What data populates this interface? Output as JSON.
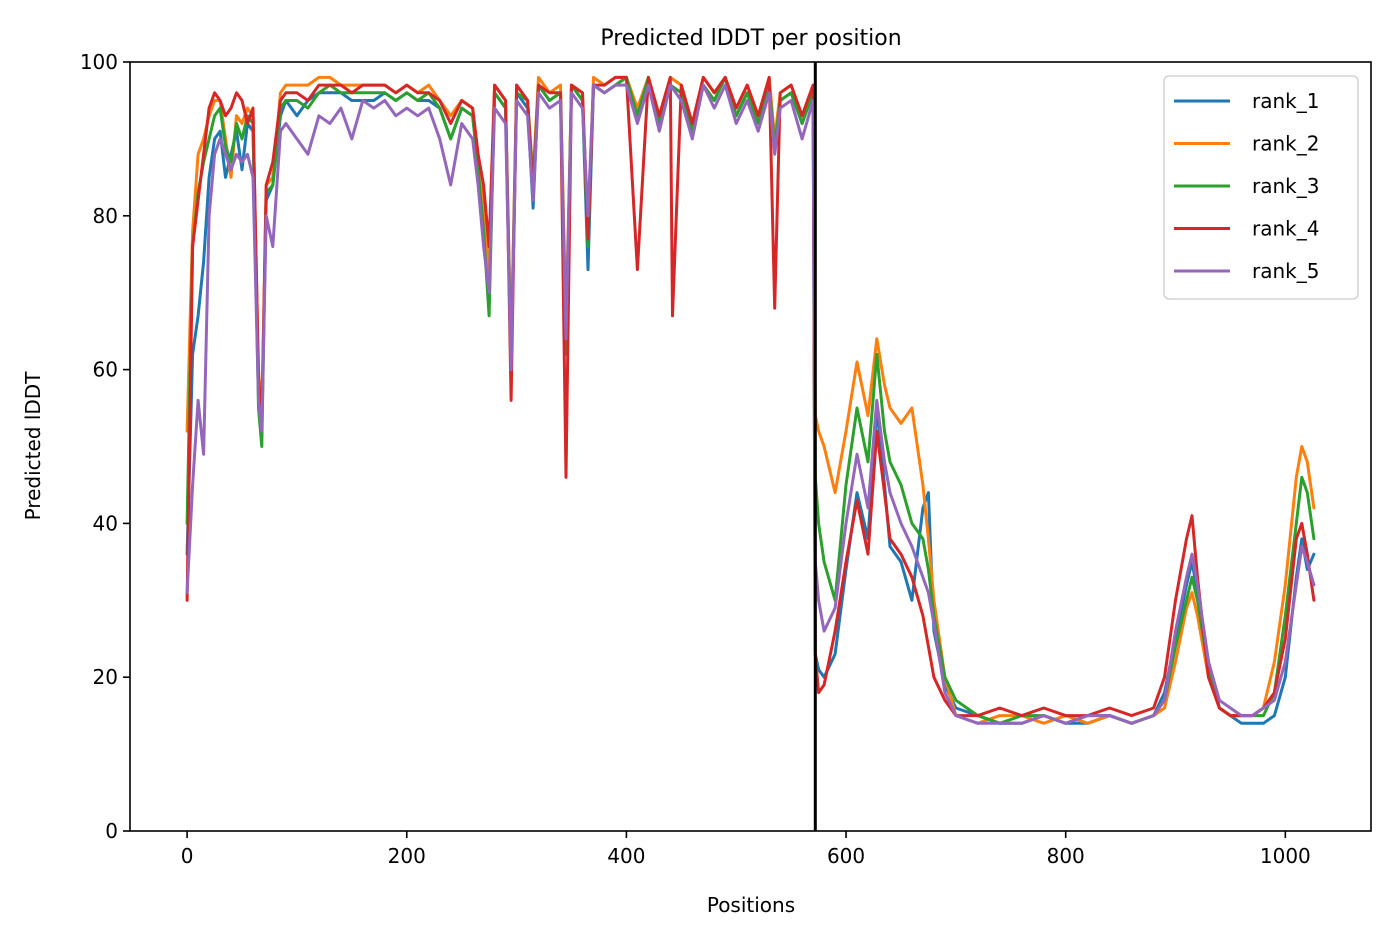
{
  "chart_data": {
    "type": "line",
    "title": "Predicted lDDT per position",
    "xlabel": "Positions",
    "ylabel": "Predicted lDDT",
    "xlim": [
      -52,
      1078
    ],
    "ylim": [
      0,
      100
    ],
    "xticks": [
      0,
      200,
      400,
      600,
      800,
      1000
    ],
    "yticks": [
      0,
      20,
      40,
      60,
      80,
      100
    ],
    "grid": false,
    "legend_position": "top-right",
    "vline_x": 572,
    "series": [
      {
        "name": "rank_1",
        "color": "#1f77b4",
        "x": [
          0,
          5,
          10,
          15,
          20,
          25,
          30,
          35,
          40,
          45,
          50,
          55,
          60,
          65,
          68,
          72,
          78,
          85,
          90,
          100,
          110,
          120,
          130,
          140,
          150,
          160,
          170,
          180,
          190,
          200,
          210,
          220,
          230,
          240,
          250,
          260,
          265,
          270,
          275,
          280,
          290,
          295,
          300,
          310,
          315,
          320,
          330,
          340,
          345,
          350,
          360,
          365,
          370,
          380,
          390,
          400,
          410,
          420,
          430,
          440,
          450,
          460,
          470,
          480,
          490,
          500,
          510,
          520,
          530,
          535,
          540,
          550,
          560,
          570,
          572,
          575,
          580,
          590,
          600,
          610,
          620,
          628,
          635,
          640,
          650,
          660,
          670,
          675,
          680,
          690,
          700,
          720,
          740,
          760,
          780,
          800,
          820,
          840,
          860,
          880,
          890,
          900,
          910,
          915,
          920,
          930,
          940,
          950,
          960,
          970,
          980,
          990,
          1000,
          1010,
          1015,
          1020,
          1026
        ],
        "values": [
          36,
          62,
          67,
          74,
          85,
          90,
          91,
          85,
          88,
          91,
          86,
          92,
          91,
          58,
          53,
          82,
          84,
          93,
          95,
          93,
          95,
          96,
          96,
          96,
          95,
          95,
          95,
          96,
          95,
          96,
          95,
          95,
          94,
          90,
          94,
          93,
          87,
          80,
          70,
          96,
          94,
          62,
          96,
          94,
          81,
          97,
          95,
          96,
          63,
          97,
          95,
          73,
          97,
          96,
          97,
          98,
          93,
          98,
          92,
          97,
          96,
          91,
          97,
          95,
          98,
          93,
          96,
          92,
          97,
          89,
          95,
          96,
          92,
          96,
          23,
          21,
          20,
          23,
          34,
          44,
          38,
          55,
          45,
          37,
          35,
          30,
          42,
          44,
          26,
          19,
          16,
          15,
          14,
          14,
          15,
          14,
          14,
          15,
          14,
          15,
          18,
          25,
          32,
          35,
          31,
          22,
          16,
          15,
          14,
          14,
          14,
          15,
          20,
          33,
          38,
          34,
          36
        ]
      },
      {
        "name": "rank_2",
        "color": "#ff7f0e",
        "x": [
          0,
          5,
          10,
          15,
          20,
          25,
          30,
          35,
          40,
          45,
          50,
          55,
          60,
          65,
          68,
          72,
          78,
          85,
          90,
          100,
          110,
          120,
          130,
          140,
          150,
          160,
          170,
          180,
          190,
          200,
          210,
          220,
          230,
          240,
          250,
          260,
          265,
          270,
          275,
          280,
          290,
          295,
          300,
          310,
          315,
          320,
          330,
          340,
          345,
          350,
          360,
          365,
          370,
          380,
          390,
          400,
          410,
          420,
          430,
          440,
          450,
          460,
          470,
          480,
          490,
          500,
          510,
          520,
          530,
          535,
          540,
          550,
          560,
          570,
          572,
          575,
          580,
          590,
          600,
          610,
          620,
          628,
          635,
          640,
          650,
          660,
          670,
          675,
          680,
          690,
          700,
          720,
          740,
          760,
          780,
          800,
          820,
          840,
          860,
          880,
          890,
          900,
          910,
          915,
          920,
          930,
          940,
          950,
          960,
          970,
          980,
          990,
          1000,
          1010,
          1015,
          1020,
          1026
        ],
        "values": [
          52,
          78,
          88,
          90,
          93,
          95,
          95,
          90,
          85,
          93,
          92,
          94,
          93,
          60,
          54,
          84,
          85,
          96,
          97,
          97,
          97,
          98,
          98,
          97,
          97,
          97,
          97,
          97,
          96,
          97,
          96,
          97,
          95,
          93,
          95,
          94,
          88,
          81,
          72,
          97,
          95,
          62,
          97,
          95,
          85,
          98,
          96,
          97,
          66,
          97,
          96,
          78,
          98,
          97,
          98,
          98,
          94,
          98,
          93,
          98,
          97,
          92,
          98,
          96,
          98,
          94,
          97,
          93,
          98,
          90,
          96,
          97,
          93,
          97,
          54,
          52,
          50,
          44,
          52,
          61,
          54,
          64,
          58,
          55,
          53,
          55,
          45,
          38,
          30,
          20,
          15,
          14,
          15,
          15,
          14,
          15,
          14,
          15,
          14,
          15,
          16,
          22,
          29,
          31,
          28,
          20,
          16,
          15,
          15,
          15,
          16,
          22,
          32,
          46,
          50,
          48,
          42
        ]
      },
      {
        "name": "rank_3",
        "color": "#2ca02c",
        "x": [
          0,
          5,
          10,
          15,
          20,
          25,
          30,
          35,
          40,
          45,
          50,
          55,
          60,
          65,
          68,
          72,
          78,
          85,
          90,
          100,
          110,
          120,
          130,
          140,
          150,
          160,
          170,
          180,
          190,
          200,
          210,
          220,
          230,
          240,
          250,
          260,
          265,
          270,
          275,
          280,
          290,
          295,
          300,
          310,
          315,
          320,
          330,
          340,
          345,
          350,
          360,
          365,
          370,
          380,
          390,
          400,
          410,
          420,
          430,
          440,
          450,
          460,
          470,
          480,
          490,
          500,
          510,
          520,
          530,
          535,
          540,
          550,
          560,
          570,
          572,
          575,
          580,
          590,
          600,
          610,
          620,
          628,
          635,
          640,
          650,
          660,
          670,
          675,
          680,
          690,
          700,
          720,
          740,
          760,
          780,
          800,
          820,
          840,
          860,
          880,
          890,
          900,
          910,
          915,
          920,
          930,
          940,
          950,
          960,
          970,
          980,
          990,
          1000,
          1010,
          1015,
          1020,
          1026
        ],
        "values": [
          40,
          76,
          83,
          87,
          90,
          93,
          94,
          89,
          87,
          92,
          90,
          93,
          92,
          55,
          50,
          83,
          84,
          94,
          95,
          95,
          94,
          96,
          97,
          96,
          96,
          96,
          96,
          96,
          95,
          96,
          95,
          96,
          94,
          90,
          94,
          93,
          86,
          78,
          67,
          96,
          94,
          60,
          96,
          95,
          84,
          97,
          95,
          96,
          62,
          97,
          95,
          76,
          97,
          96,
          97,
          98,
          93,
          98,
          92,
          97,
          96,
          91,
          97,
          95,
          98,
          93,
          96,
          92,
          97,
          89,
          95,
          96,
          92,
          96,
          46,
          40,
          35,
          30,
          45,
          55,
          48,
          62,
          52,
          48,
          45,
          40,
          38,
          34,
          28,
          20,
          17,
          15,
          14,
          15,
          15,
          14,
          15,
          15,
          14,
          15,
          17,
          24,
          30,
          33,
          30,
          21,
          16,
          15,
          15,
          15,
          15,
          18,
          28,
          40,
          46,
          44,
          38
        ]
      },
      {
        "name": "rank_4",
        "color": "#d62728",
        "x": [
          0,
          5,
          10,
          15,
          20,
          25,
          30,
          35,
          40,
          45,
          50,
          55,
          60,
          65,
          68,
          72,
          78,
          85,
          90,
          100,
          110,
          120,
          130,
          140,
          150,
          160,
          170,
          180,
          190,
          200,
          210,
          220,
          230,
          240,
          250,
          260,
          265,
          270,
          275,
          280,
          290,
          295,
          300,
          310,
          315,
          320,
          330,
          340,
          345,
          350,
          360,
          365,
          370,
          380,
          390,
          400,
          410,
          420,
          430,
          440,
          442,
          450,
          460,
          470,
          480,
          490,
          500,
          510,
          520,
          530,
          535,
          540,
          550,
          560,
          570,
          572,
          575,
          580,
          590,
          600,
          610,
          620,
          628,
          635,
          640,
          650,
          660,
          670,
          675,
          680,
          690,
          700,
          720,
          740,
          760,
          780,
          800,
          820,
          840,
          860,
          880,
          890,
          900,
          910,
          915,
          920,
          930,
          940,
          950,
          960,
          970,
          980,
          990,
          1000,
          1010,
          1015,
          1020,
          1026
        ],
        "values": [
          30,
          76,
          82,
          88,
          94,
          96,
          95,
          93,
          94,
          96,
          95,
          92,
          94,
          59,
          53,
          84,
          87,
          95,
          96,
          96,
          95,
          97,
          97,
          97,
          96,
          97,
          97,
          97,
          96,
          97,
          96,
          96,
          95,
          92,
          95,
          94,
          88,
          84,
          76,
          97,
          95,
          56,
          97,
          95,
          83,
          97,
          96,
          96,
          46,
          97,
          96,
          77,
          97,
          97,
          98,
          98,
          73,
          98,
          93,
          98,
          67,
          97,
          92,
          98,
          96,
          98,
          94,
          97,
          93,
          98,
          68,
          96,
          97,
          93,
          97,
          23,
          18,
          19,
          26,
          35,
          43,
          36,
          52,
          44,
          38,
          36,
          33,
          28,
          24,
          20,
          17,
          15,
          15,
          16,
          15,
          16,
          15,
          15,
          16,
          15,
          16,
          20,
          30,
          38,
          41,
          33,
          20,
          16,
          15,
          15,
          15,
          16,
          18,
          25,
          38,
          40,
          36,
          30
        ]
      },
      {
        "name": "rank_5",
        "color": "#9467bd",
        "x": [
          0,
          5,
          10,
          15,
          20,
          25,
          30,
          35,
          40,
          45,
          50,
          55,
          60,
          65,
          68,
          72,
          78,
          85,
          90,
          100,
          110,
          120,
          130,
          140,
          150,
          160,
          170,
          180,
          190,
          200,
          210,
          220,
          230,
          240,
          250,
          260,
          265,
          270,
          275,
          280,
          290,
          295,
          300,
          310,
          315,
          320,
          330,
          340,
          345,
          350,
          360,
          365,
          370,
          380,
          390,
          400,
          410,
          420,
          430,
          440,
          450,
          460,
          470,
          480,
          490,
          500,
          510,
          520,
          530,
          535,
          540,
          550,
          560,
          570,
          572,
          575,
          580,
          590,
          600,
          610,
          620,
          628,
          635,
          640,
          650,
          660,
          670,
          675,
          680,
          690,
          700,
          720,
          740,
          760,
          780,
          800,
          820,
          840,
          860,
          880,
          890,
          900,
          910,
          915,
          920,
          930,
          940,
          950,
          960,
          970,
          980,
          990,
          1000,
          1010,
          1015,
          1020,
          1026
        ],
        "values": [
          31,
          45,
          56,
          49,
          80,
          88,
          90,
          88,
          86,
          88,
          87,
          88,
          85,
          56,
          52,
          80,
          76,
          91,
          92,
          90,
          88,
          93,
          92,
          94,
          90,
          95,
          94,
          95,
          93,
          94,
          93,
          94,
          90,
          84,
          92,
          90,
          84,
          76,
          70,
          94,
          92,
          60,
          95,
          93,
          82,
          96,
          94,
          95,
          64,
          96,
          94,
          80,
          97,
          96,
          97,
          97,
          92,
          97,
          91,
          97,
          95,
          90,
          97,
          94,
          97,
          92,
          95,
          91,
          96,
          88,
          94,
          95,
          90,
          95,
          35,
          30,
          26,
          29,
          40,
          49,
          42,
          56,
          48,
          44,
          40,
          37,
          33,
          31,
          27,
          18,
          15,
          14,
          14,
          14,
          15,
          14,
          15,
          15,
          14,
          15,
          17,
          26,
          33,
          36,
          32,
          22,
          17,
          16,
          15,
          15,
          16,
          17,
          22,
          32,
          37,
          35,
          32
        ]
      }
    ]
  }
}
